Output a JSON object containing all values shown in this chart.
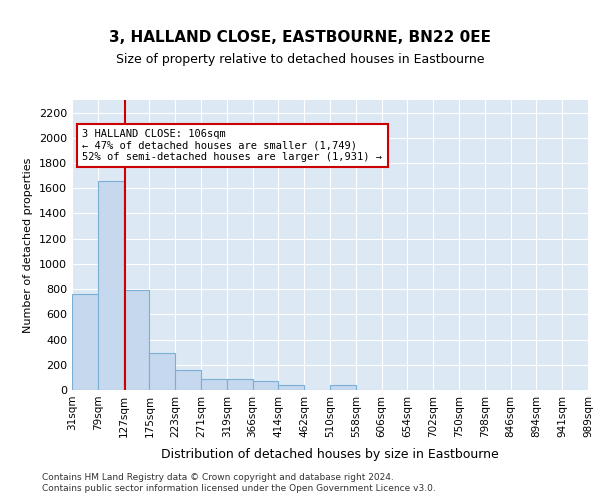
{
  "title": "3, HALLAND CLOSE, EASTBOURNE, BN22 0EE",
  "subtitle": "Size of property relative to detached houses in Eastbourne",
  "xlabel": "Distribution of detached houses by size in Eastbourne",
  "ylabel": "Number of detached properties",
  "footer_line1": "Contains HM Land Registry data © Crown copyright and database right 2024.",
  "footer_line2": "Contains public sector information licensed under the Open Government Licence v3.0.",
  "bin_labels": [
    "31sqm",
    "79sqm",
    "127sqm",
    "175sqm",
    "223sqm",
    "271sqm",
    "319sqm",
    "366sqm",
    "414sqm",
    "462sqm",
    "510sqm",
    "558sqm",
    "606sqm",
    "654sqm",
    "702sqm",
    "750sqm",
    "798sqm",
    "846sqm",
    "894sqm",
    "941sqm",
    "989sqm"
  ],
  "bar_values": [
    760,
    1660,
    790,
    295,
    155,
    90,
    85,
    70,
    40,
    0,
    40,
    0,
    0,
    0,
    0,
    0,
    0,
    0,
    0,
    0
  ],
  "bar_color": "#c5d8ed",
  "bar_edge_color": "#7bafd4",
  "annotation_text": "3 HALLAND CLOSE: 106sqm\n← 47% of detached houses are smaller (1,749)\n52% of semi-detached houses are larger (1,931) →",
  "annotation_box_color": "#ffffff",
  "annotation_box_edge": "#cc0000",
  "vline_color": "#cc0000",
  "background_color": "#dce9f5",
  "ylim": [
    0,
    2300
  ],
  "yticks": [
    0,
    200,
    400,
    600,
    800,
    1000,
    1200,
    1400,
    1600,
    1800,
    2000,
    2200
  ]
}
